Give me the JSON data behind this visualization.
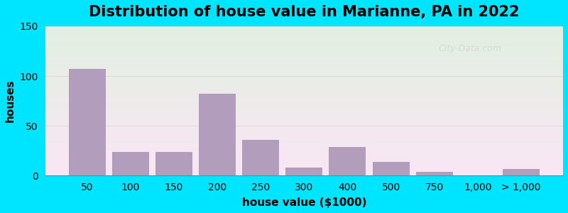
{
  "title": "Distribution of house value in Marianne, PA in 2022",
  "xlabel": "house value ($1000)",
  "ylabel": "houses",
  "bar_color": "#b39dbd",
  "background_outer": "#00e5ff",
  "background_inner_top": "#e8f5e9",
  "background_inner_bottom": "#f3f0f8",
  "bar_labels": [
    "50",
    "100",
    "150",
    "200",
    "250",
    "300",
    "400",
    "500",
    "750",
    "1,000",
    "> 1,000"
  ],
  "bar_values": [
    107,
    24,
    24,
    82,
    36,
    8,
    29,
    14,
    4,
    0,
    7
  ],
  "bar_positions": [
    0,
    1,
    2,
    3,
    4,
    5,
    6,
    7,
    8,
    9,
    10
  ],
  "ylim": [
    0,
    150
  ],
  "yticks": [
    0,
    50,
    100,
    150
  ],
  "title_fontsize": 15,
  "axis_fontsize": 10,
  "watermark_text": "City-Data.com"
}
